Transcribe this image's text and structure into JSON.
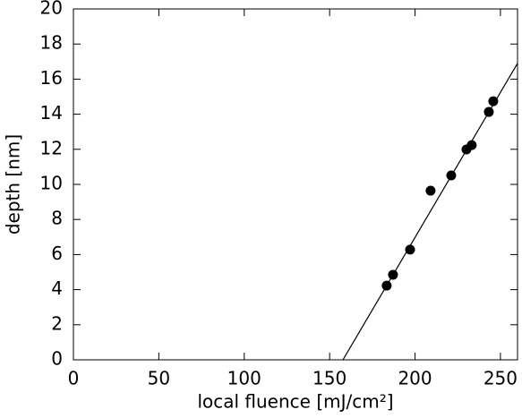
{
  "chart_data": {
    "type": "scatter",
    "x_label": "local fluence [mJ/cm²]",
    "y_label": "depth [nm]",
    "x": [
      183.4,
      187.1,
      197.1,
      209.1,
      221.2,
      230.1,
      233.2,
      243.2,
      245.8
    ],
    "values": [
      4.23,
      4.85,
      6.28,
      9.64,
      10.51,
      11.99,
      12.24,
      14.13,
      14.74
    ],
    "color": "#000000",
    "fit": {
      "x": [
        157.8,
        260
      ],
      "values": [
        0,
        16.9
      ],
      "color": "#000000"
    },
    "xlim": [
      0,
      260
    ],
    "xticks": [
      0,
      50,
      100,
      150,
      200,
      250
    ],
    "ylim": [
      0,
      20
    ],
    "yticks": [
      0,
      2,
      4,
      6,
      8,
      10,
      12,
      14,
      16,
      18,
      20
    ],
    "grid": false
  }
}
